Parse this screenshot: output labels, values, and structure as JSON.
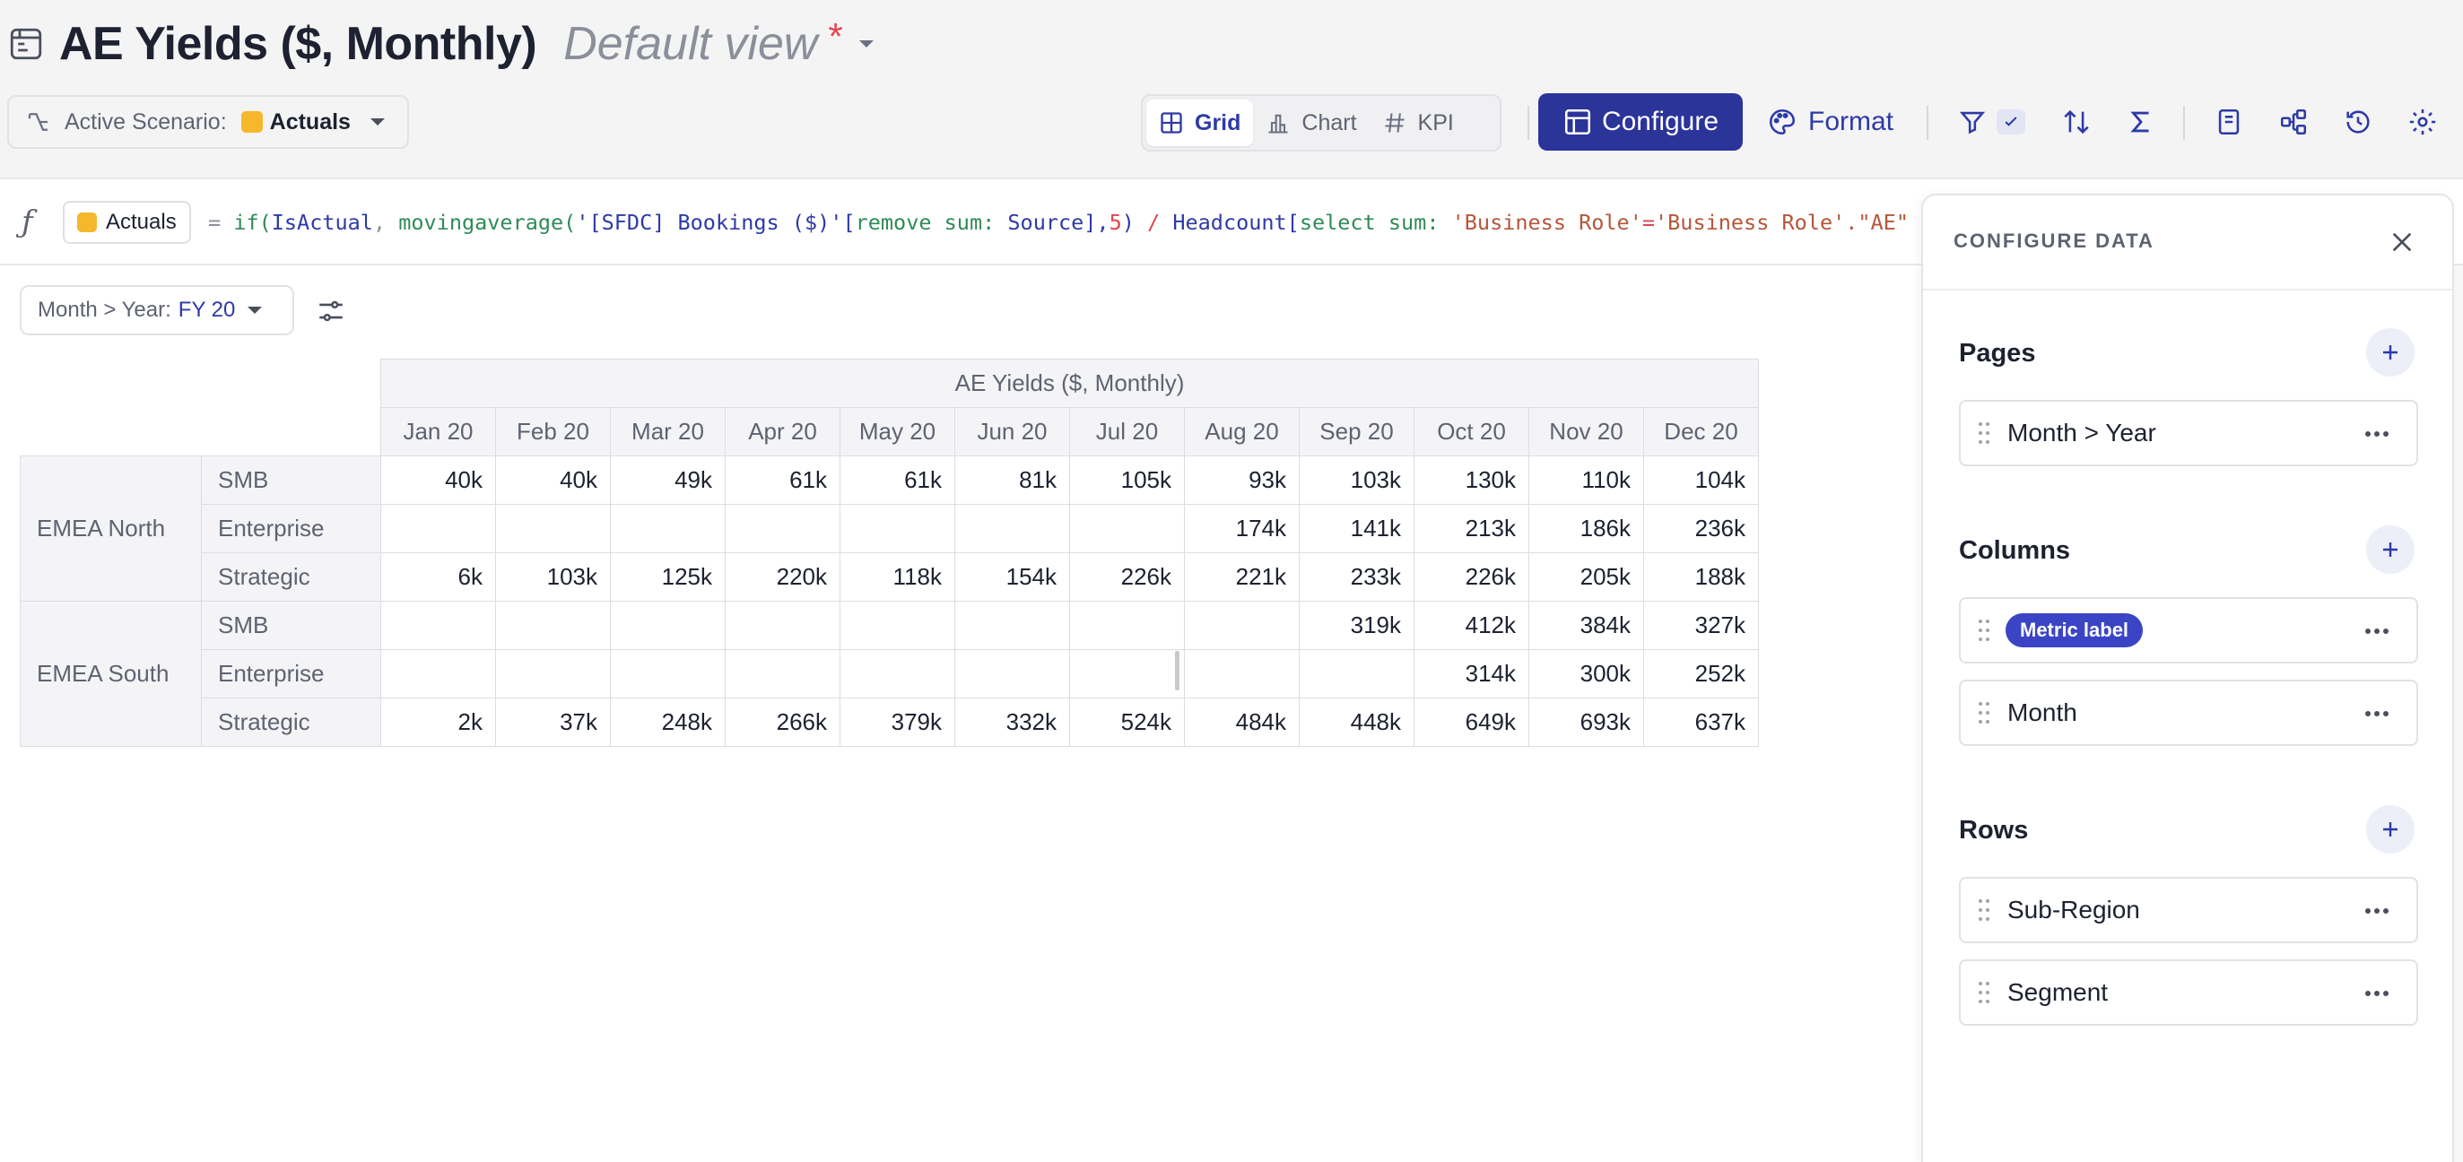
{
  "header": {
    "title": "AE Yields ($, Monthly)",
    "view_name": "Default view",
    "unsaved_marker": "*"
  },
  "scenario": {
    "label": "Active Scenario:",
    "value": "Actuals",
    "color": "#f6b72c"
  },
  "view_tabs": [
    {
      "label": "Grid",
      "icon": "grid-icon",
      "active": true
    },
    {
      "label": "Chart",
      "icon": "bar-chart-icon",
      "active": false
    },
    {
      "label": "KPI",
      "icon": "hash-icon",
      "active": false
    }
  ],
  "toolbar": {
    "configure_label": "Configure",
    "format_label": "Format",
    "icons": [
      "filter-icon",
      "check-icon",
      "sort-icon",
      "sigma-icon",
      "notes-icon",
      "hierarchy-icon",
      "history-icon",
      "settings-icon"
    ],
    "accent_color": "#2b3499"
  },
  "formula": {
    "fx_symbol": "ƒ",
    "chip_label": "Actuals",
    "eq": "=",
    "p01": "if(",
    "p02": "IsActual",
    "p03": ", ",
    "p04": "movingaverage(",
    "p05": "'[SFDC] Bookings ($)'",
    "p06": "[",
    "p07": "remove sum:",
    "p08": " Source",
    "p09": "],",
    "p10": "5",
    "p11": ") ",
    "p12": "/",
    "p13": " Headcount[",
    "p14": "select sum:",
    "p15": " 'Business Role'",
    "p16": "=",
    "p17": "'Business Role'.",
    "p18": "\"AE\""
  },
  "page_filter": {
    "label": "Month > Year:",
    "value": "FY 20"
  },
  "table": {
    "metric_header": "AE Yields ($, Monthly)",
    "months": [
      "Jan 20",
      "Feb 20",
      "Mar 20",
      "Apr 20",
      "May 20",
      "Jun 20",
      "Jul 20",
      "Aug 20",
      "Sep 20",
      "Oct 20",
      "Nov 20",
      "Dec 20"
    ],
    "regions": [
      {
        "name": "EMEA North",
        "rows": [
          {
            "segment": "SMB",
            "values": [
              "40k",
              "40k",
              "49k",
              "61k",
              "61k",
              "81k",
              "105k",
              "93k",
              "103k",
              "130k",
              "110k",
              "104k"
            ]
          },
          {
            "segment": "Enterprise",
            "values": [
              "",
              "",
              "",
              "",
              "",
              "",
              "",
              "174k",
              "141k",
              "213k",
              "186k",
              "236k"
            ]
          },
          {
            "segment": "Strategic",
            "values": [
              "6k",
              "103k",
              "125k",
              "220k",
              "118k",
              "154k",
              "226k",
              "221k",
              "233k",
              "226k",
              "205k",
              "188k"
            ]
          }
        ]
      },
      {
        "name": "EMEA South",
        "rows": [
          {
            "segment": "SMB",
            "values": [
              "",
              "",
              "",
              "",
              "",
              "",
              "",
              "",
              "319k",
              "412k",
              "384k",
              "327k"
            ]
          },
          {
            "segment": "Enterprise",
            "values": [
              "",
              "",
              "",
              "",
              "",
              "",
              "",
              "",
              "",
              "314k",
              "300k",
              "252k"
            ]
          },
          {
            "segment": "Strategic",
            "values": [
              "2k",
              "37k",
              "248k",
              "266k",
              "379k",
              "332k",
              "524k",
              "484k",
              "448k",
              "649k",
              "693k",
              "637k"
            ]
          }
        ]
      }
    ]
  },
  "configure_panel": {
    "title": "CONFIGURE DATA",
    "sections": {
      "pages": {
        "label": "Pages",
        "items": [
          "Month > Year"
        ]
      },
      "columns": {
        "label": "Columns",
        "badge": "Metric label",
        "items": [
          "Month"
        ]
      },
      "rows": {
        "label": "Rows",
        "items": [
          "Sub-Region",
          "Segment"
        ]
      }
    }
  }
}
